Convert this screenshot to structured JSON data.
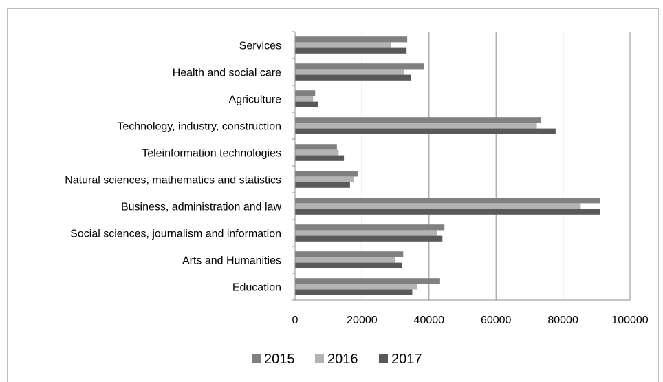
{
  "chart_data": {
    "type": "bar",
    "orientation": "horizontal",
    "categories": [
      "Education",
      "Arts and Humanities ",
      "Social sciences, journalism and information",
      "Business, administration and law",
      "Natural sciences, mathematics and statistics",
      "Teleinformation technologies",
      "Technology, industry, construction",
      "Agriculture",
      "Health and social care",
      "Services"
    ],
    "series": [
      {
        "name": "2015",
        "color": "#808080",
        "values": [
          43300,
          32300,
          44600,
          91000,
          18700,
          12500,
          73300,
          6000,
          38400,
          33500
        ]
      },
      {
        "name": "2016",
        "color": "#b3b3b3",
        "values": [
          36500,
          30000,
          42300,
          85300,
          17600,
          13000,
          72200,
          5400,
          32600,
          28600
        ]
      },
      {
        "name": "2017",
        "color": "#595959",
        "values": [
          35000,
          32000,
          44000,
          91000,
          16400,
          14600,
          77800,
          6800,
          34500,
          33300
        ]
      }
    ],
    "xlim": [
      0,
      100000
    ],
    "xticks": [
      "0",
      "20000",
      "40000",
      "60000",
      "80000",
      "100000"
    ],
    "grid": true,
    "legend_position": "bottom"
  }
}
